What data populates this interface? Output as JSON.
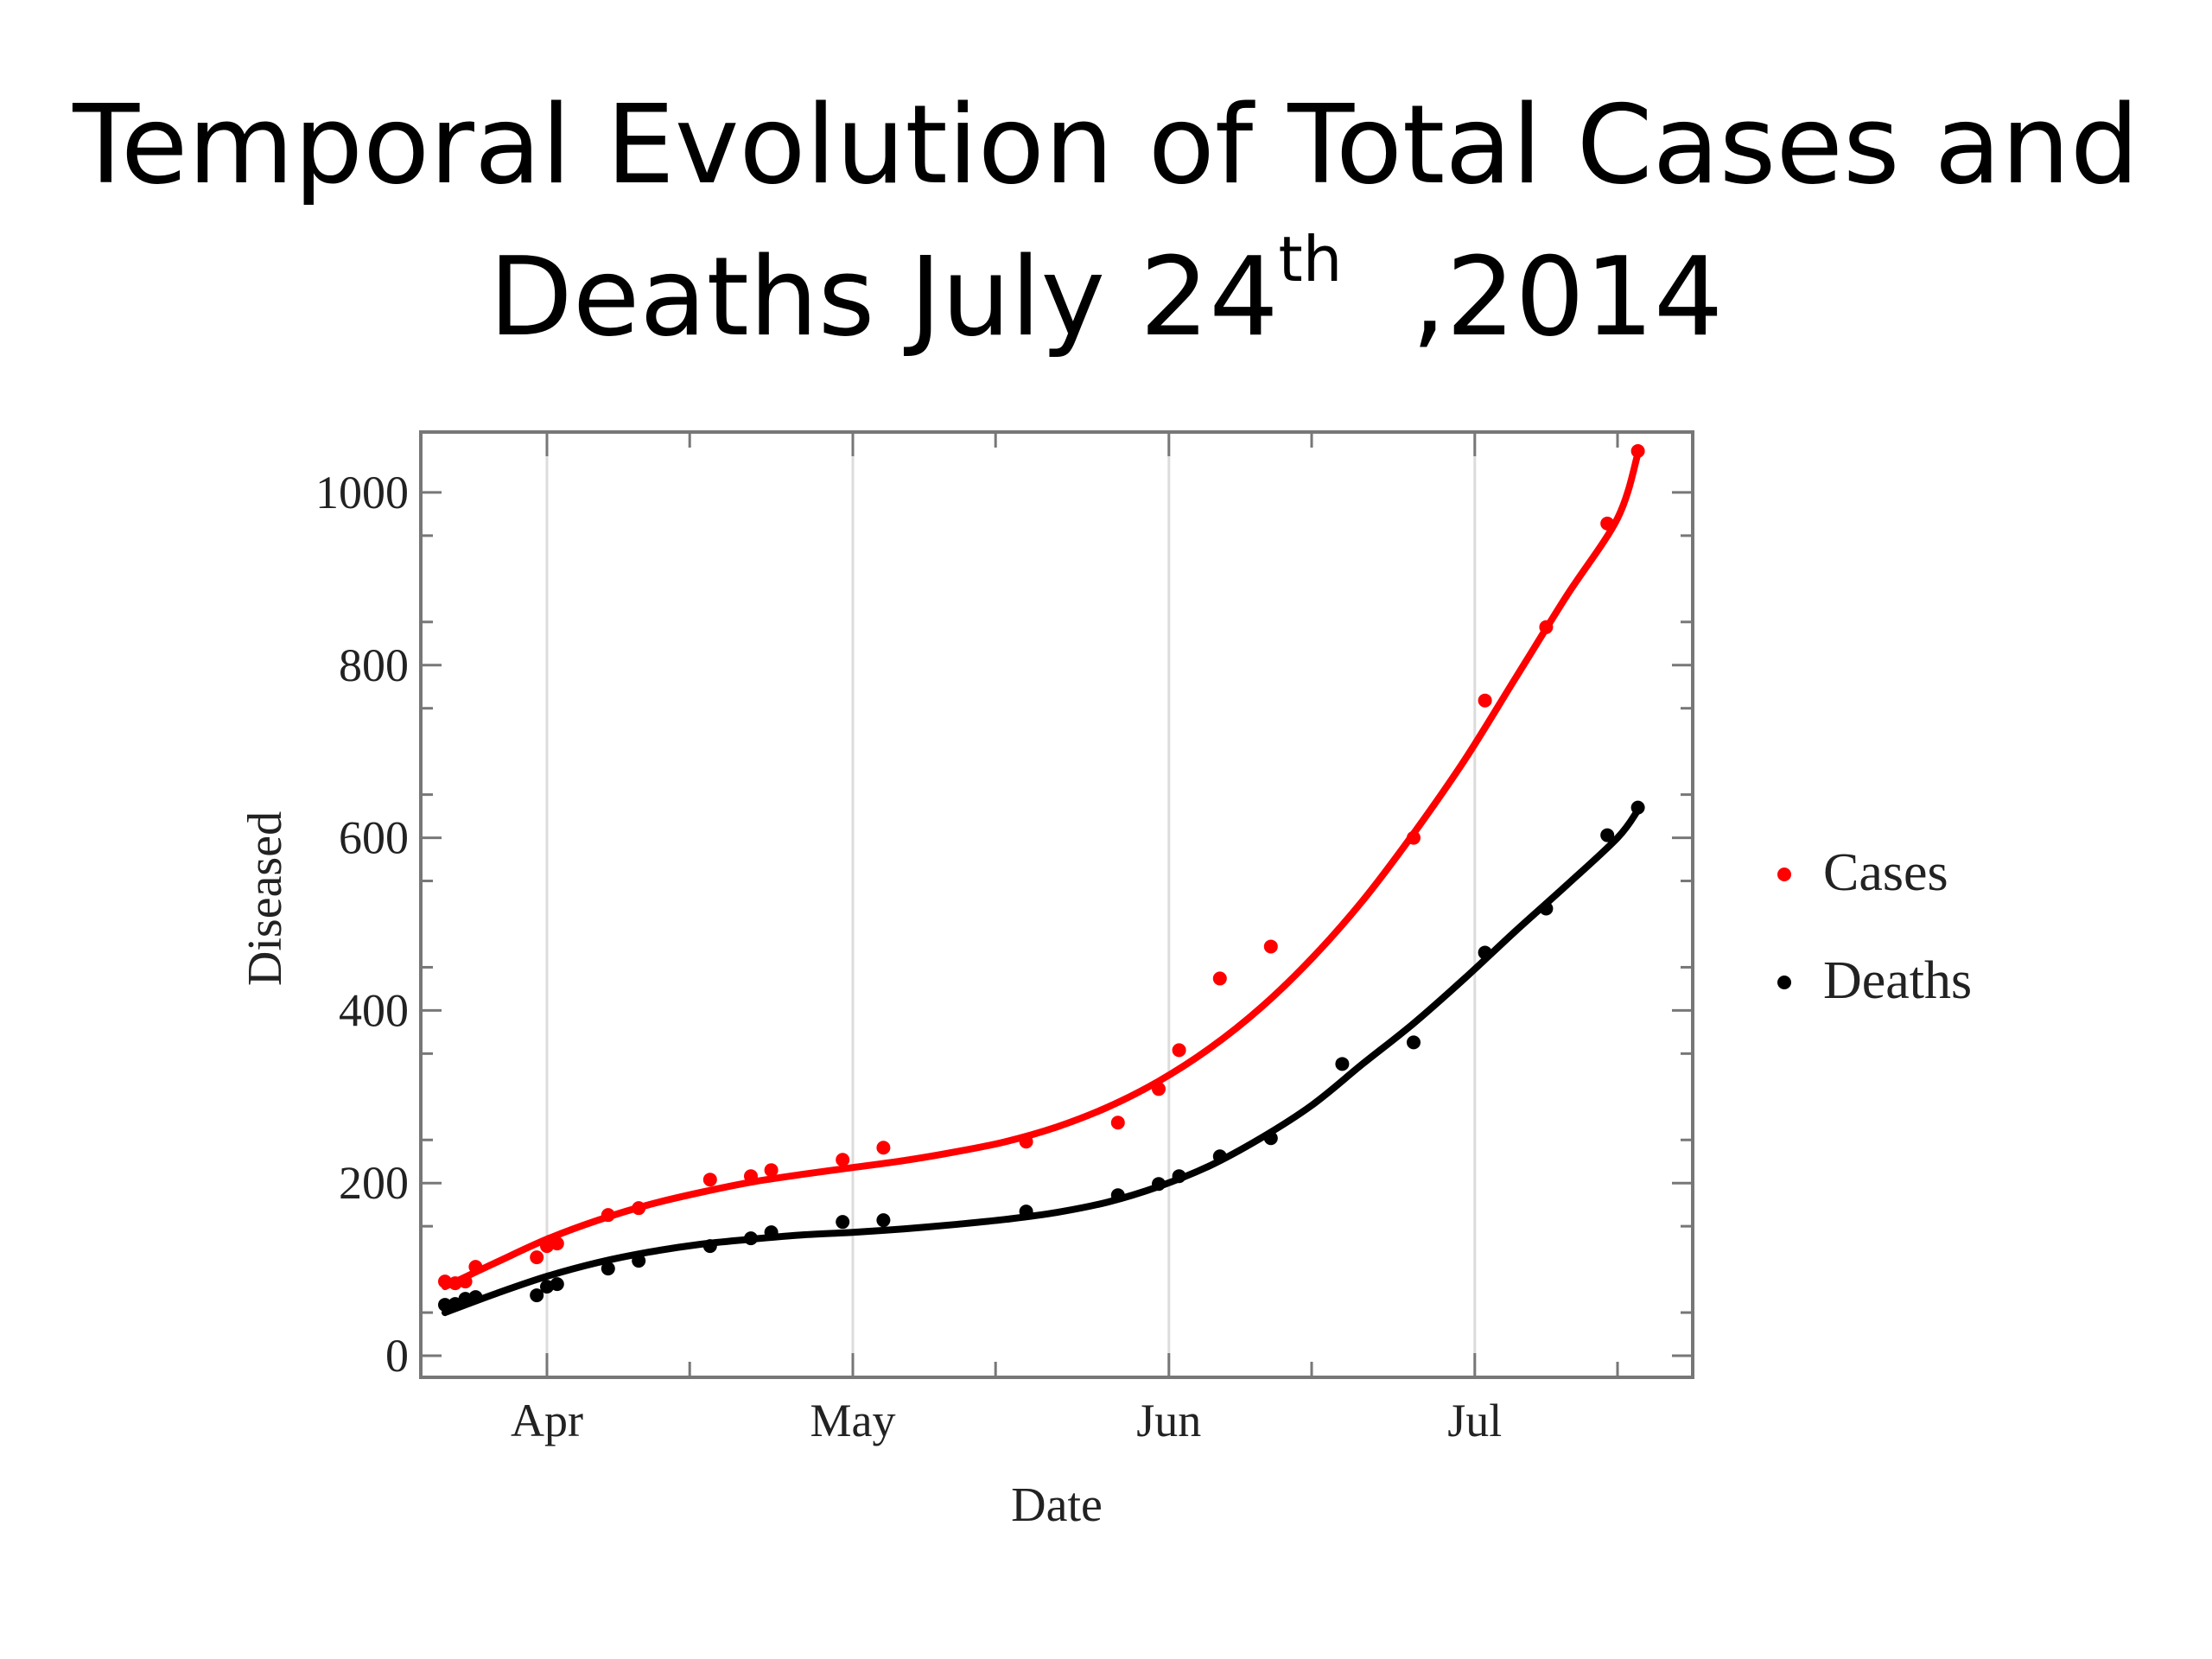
{
  "slide": {
    "title_line1": "Temporal Evolution of Total Cases and",
    "title_line2_main": "Deaths July 24",
    "title_line2_sup": "th",
    "title_line2_end": "  ,2014"
  },
  "chart_data": {
    "type": "scatter",
    "xlabel": "Date",
    "ylabel": "Diseased",
    "x_ticks": [
      {
        "date": "2014-04-01",
        "label": "Apr"
      },
      {
        "date": "2014-05-01",
        "label": "May"
      },
      {
        "date": "2014-06-01",
        "label": "Jun"
      },
      {
        "date": "2014-07-01",
        "label": "Jul"
      }
    ],
    "x_minor_ticks": [
      "2014-04-15",
      "2014-05-15",
      "2014-06-15",
      "2014-07-15"
    ],
    "xlim": [
      "2014-03-22",
      "2014-07-20"
    ],
    "ylim": [
      -25,
      1070
    ],
    "y_ticks": [
      0,
      200,
      400,
      600,
      800,
      1000
    ],
    "grid": "vertical at month ticks",
    "legend_position": "right",
    "series": [
      {
        "name": "Cases",
        "color": "#ff0000",
        "points": [
          [
            "2014-03-22",
            86
          ],
          [
            "2014-03-23",
            84
          ],
          [
            "2014-03-24",
            86
          ],
          [
            "2014-03-25",
            103
          ],
          [
            "2014-03-31",
            114
          ],
          [
            "2014-04-01",
            127
          ],
          [
            "2014-04-02",
            130
          ],
          [
            "2014-04-07",
            163
          ],
          [
            "2014-04-10",
            171
          ],
          [
            "2014-04-17",
            204
          ],
          [
            "2014-04-21",
            208
          ],
          [
            "2014-04-23",
            215
          ],
          [
            "2014-04-30",
            227
          ],
          [
            "2014-05-04",
            241
          ],
          [
            "2014-05-18",
            248
          ],
          [
            "2014-05-27",
            270
          ],
          [
            "2014-05-31",
            309
          ],
          [
            "2014-06-02",
            354
          ],
          [
            "2014-06-06",
            437
          ],
          [
            "2014-06-11",
            474
          ],
          [
            "2014-06-25",
            600
          ],
          [
            "2014-07-02",
            759
          ],
          [
            "2014-07-08",
            844
          ],
          [
            "2014-07-14",
            964
          ],
          [
            "2014-07-17",
            1048
          ]
        ],
        "fit": [
          [
            "2014-03-22",
            80
          ],
          [
            "2014-03-27",
            108
          ],
          [
            "2014-04-01",
            135
          ],
          [
            "2014-04-06",
            157
          ],
          [
            "2014-04-11",
            175
          ],
          [
            "2014-04-16",
            189
          ],
          [
            "2014-04-21",
            201
          ],
          [
            "2014-04-26",
            210
          ],
          [
            "2014-05-01",
            218
          ],
          [
            "2014-05-06",
            226
          ],
          [
            "2014-05-11",
            236
          ],
          [
            "2014-05-16",
            248
          ],
          [
            "2014-05-21",
            265
          ],
          [
            "2014-05-26",
            288
          ],
          [
            "2014-05-31",
            318
          ],
          [
            "2014-06-05",
            356
          ],
          [
            "2014-06-10",
            403
          ],
          [
            "2014-06-15",
            460
          ],
          [
            "2014-06-20",
            527
          ],
          [
            "2014-06-25",
            605
          ],
          [
            "2014-06-30",
            690
          ],
          [
            "2014-07-05",
            785
          ],
          [
            "2014-07-10",
            880
          ],
          [
            "2014-07-15",
            970
          ],
          [
            "2014-07-17",
            1045
          ]
        ]
      },
      {
        "name": "Deaths",
        "color": "#000000",
        "points": [
          [
            "2014-03-22",
            59
          ],
          [
            "2014-03-23",
            60
          ],
          [
            "2014-03-24",
            66
          ],
          [
            "2014-03-25",
            68
          ],
          [
            "2014-03-31",
            70
          ],
          [
            "2014-04-01",
            80
          ],
          [
            "2014-04-02",
            83
          ],
          [
            "2014-04-07",
            101
          ],
          [
            "2014-04-10",
            110
          ],
          [
            "2014-04-17",
            127
          ],
          [
            "2014-04-21",
            136
          ],
          [
            "2014-04-23",
            143
          ],
          [
            "2014-04-30",
            155
          ],
          [
            "2014-05-04",
            157
          ],
          [
            "2014-05-18",
            167
          ],
          [
            "2014-05-27",
            186
          ],
          [
            "2014-05-31",
            199
          ],
          [
            "2014-06-02",
            208
          ],
          [
            "2014-06-06",
            231
          ],
          [
            "2014-06-11",
            252
          ],
          [
            "2014-06-18",
            338
          ],
          [
            "2014-06-25",
            363
          ],
          [
            "2014-07-02",
            467
          ],
          [
            "2014-07-08",
            518
          ],
          [
            "2014-07-14",
            603
          ],
          [
            "2014-07-17",
            635
          ]
        ],
        "fit": [
          [
            "2014-03-22",
            50
          ],
          [
            "2014-03-27",
            72
          ],
          [
            "2014-04-01",
            92
          ],
          [
            "2014-04-06",
            108
          ],
          [
            "2014-04-11",
            120
          ],
          [
            "2014-04-16",
            129
          ],
          [
            "2014-04-21",
            135
          ],
          [
            "2014-04-26",
            140
          ],
          [
            "2014-05-01",
            143
          ],
          [
            "2014-05-06",
            147
          ],
          [
            "2014-05-11",
            152
          ],
          [
            "2014-05-16",
            158
          ],
          [
            "2014-05-21",
            166
          ],
          [
            "2014-05-26",
            178
          ],
          [
            "2014-05-31",
            196
          ],
          [
            "2014-06-05",
            220
          ],
          [
            "2014-06-10",
            252
          ],
          [
            "2014-06-15",
            290
          ],
          [
            "2014-06-20",
            338
          ],
          [
            "2014-06-25",
            385
          ],
          [
            "2014-06-30",
            437
          ],
          [
            "2014-07-05",
            492
          ],
          [
            "2014-07-10",
            545
          ],
          [
            "2014-07-15",
            600
          ],
          [
            "2014-07-17",
            632
          ]
        ]
      }
    ]
  }
}
